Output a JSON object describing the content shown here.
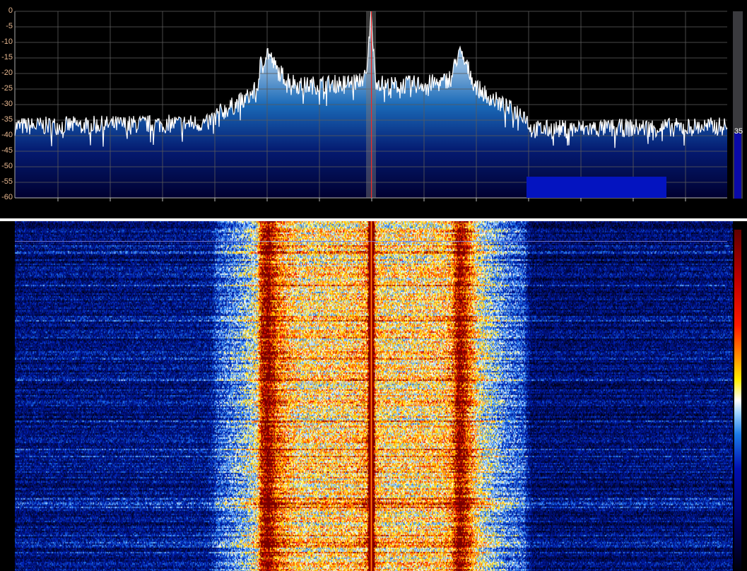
{
  "spectrum": {
    "y_axis_labels": [
      "0",
      "-5",
      "-10",
      "-15",
      "-20",
      "-25",
      "-30",
      "-35",
      "-40",
      "-45",
      "-50",
      "-55",
      "-60"
    ],
    "colors": {
      "trace": "#ffffff",
      "fill_top": "#a8c8e8",
      "fill_mid": "#1a6ab8",
      "fill_bottom": "#000030",
      "grid": "#5a5a5a",
      "axis_label": "#e8b890",
      "filter_band": "#7a7a7a",
      "carrier_marker": "#ff2020",
      "overlay_block": "#0414c0"
    }
  },
  "gain": {
    "value_label": "35",
    "level_fraction": 0.35
  },
  "chart_data": {
    "type": "line",
    "ylim": [
      -60,
      0
    ],
    "yticks": [
      0,
      -5,
      -10,
      -15,
      -20,
      -25,
      -30,
      -35,
      -40,
      -45,
      -50,
      -55,
      -60
    ],
    "grid": true,
    "x": [
      0,
      27,
      28.5,
      31,
      32.5,
      34,
      34.5,
      35.5,
      36.8,
      37.8,
      40,
      47.5,
      49.4,
      50,
      50.6,
      52,
      60,
      61.3,
      62.3,
      63.5,
      65,
      69,
      71.5,
      72.5,
      100
    ],
    "values": [
      -37,
      -36,
      -33,
      -30,
      -28,
      -25,
      -17,
      -13,
      -19,
      -21,
      -24,
      -23,
      -21,
      0,
      -22,
      -24,
      -23,
      -21,
      -13,
      -18,
      -25,
      -31,
      -33,
      -38,
      -37
    ]
  }
}
